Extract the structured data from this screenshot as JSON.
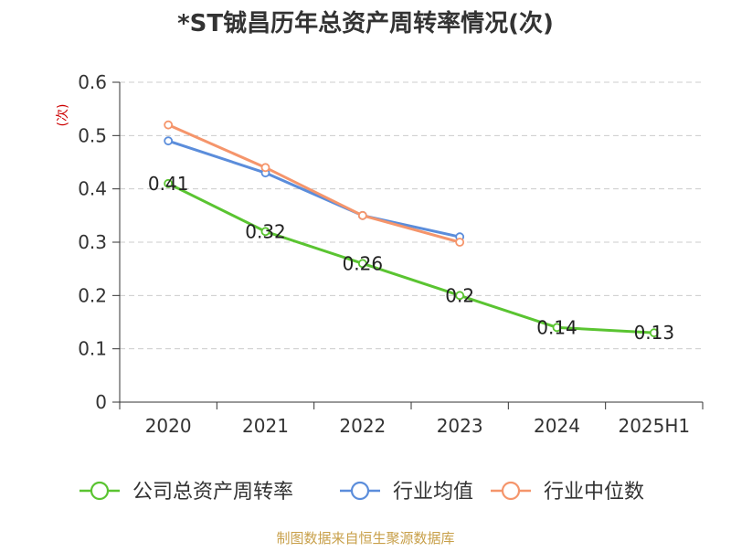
{
  "chart_data": {
    "type": "line",
    "title": "*ST铖昌历年总资产周转率情况(次)",
    "ylabel": "(次)",
    "xlabel": "",
    "categories": [
      "2020",
      "2021",
      "2022",
      "2023",
      "2024",
      "2025H1"
    ],
    "ylim": [
      0,
      0.6
    ],
    "yticks": [
      0,
      0.1,
      0.2,
      0.3,
      0.4,
      0.5,
      0.6
    ],
    "ytick_labels": [
      "0",
      "0.1",
      "0.2",
      "0.3",
      "0.4",
      "0.5",
      "0.6"
    ],
    "grid": true,
    "legend_position": "bottom",
    "series": [
      {
        "name": "公司总资产周转率",
        "color": "#5ac431",
        "values": [
          0.41,
          0.32,
          0.26,
          0.2,
          0.14,
          0.13
        ],
        "data_labels": [
          "0.41",
          "0.32",
          "0.26",
          "0.2",
          "0.14",
          "0.13"
        ]
      },
      {
        "name": "行业均值",
        "color": "#5b8ddb",
        "values": [
          0.49,
          0.43,
          0.35,
          0.31,
          null,
          null
        ]
      },
      {
        "name": "行业中位数",
        "color": "#f5956b",
        "values": [
          0.52,
          0.44,
          0.35,
          0.3,
          null,
          null
        ]
      }
    ]
  },
  "source_text": "制图数据来自恒生聚源数据库",
  "colors": {
    "title": "#333333",
    "axis": "#333333",
    "grid": "#cccccc",
    "ylabel": "#cc0000",
    "source": "#c8a04a"
  }
}
